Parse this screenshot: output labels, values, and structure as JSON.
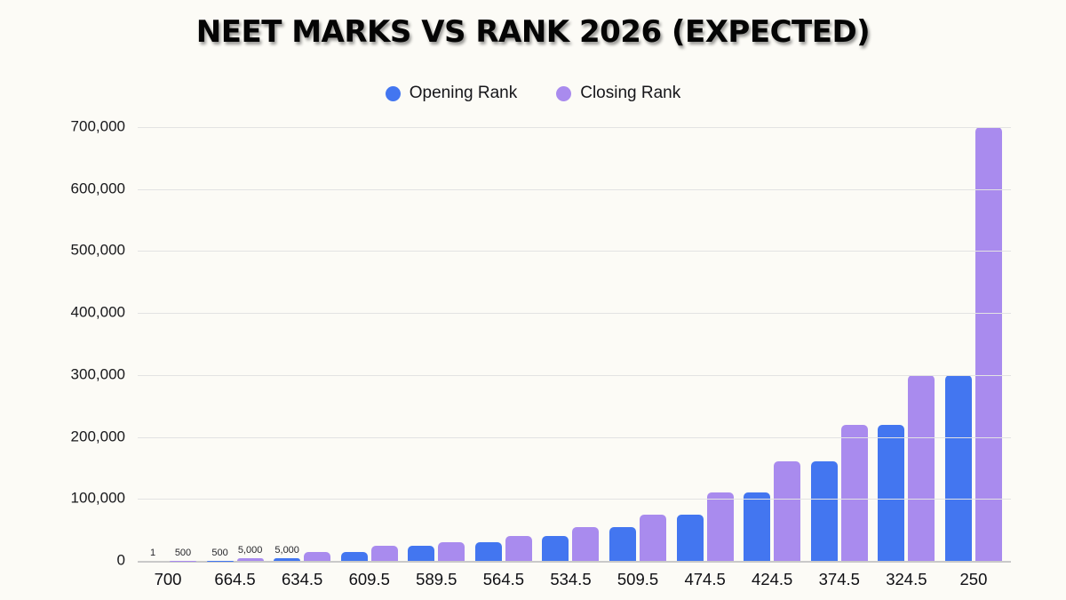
{
  "page": {
    "background": "#FCFBF6"
  },
  "chart_data": {
    "type": "bar",
    "title": "NEET MARKS VS RANK 2026 (EXPECTED)",
    "categories": [
      "700",
      "664.5",
      "634.5",
      "609.5",
      "589.5",
      "564.5",
      "534.5",
      "509.5",
      "474.5",
      "424.5",
      "374.5",
      "324.5",
      "250"
    ],
    "series": [
      {
        "name": "Opening Rank",
        "color": "#4376F0",
        "values": [
          1,
          500,
          5000,
          15000,
          25000,
          30000,
          40000,
          55000,
          75000,
          110000,
          160000,
          220000,
          300000
        ],
        "data_labels": [
          "1",
          "500",
          "5,000",
          null,
          null,
          null,
          null,
          null,
          null,
          null,
          null,
          null,
          null
        ]
      },
      {
        "name": "Closing Rank",
        "color": "#A98BEE",
        "values": [
          500,
          5000,
          15000,
          25000,
          30000,
          40000,
          55000,
          75000,
          110000,
          160000,
          220000,
          300000,
          700000
        ],
        "data_labels": [
          "500",
          "5,000",
          null,
          null,
          null,
          null,
          null,
          null,
          null,
          null,
          null,
          null,
          null
        ]
      }
    ],
    "xlabel": "",
    "ylabel": "",
    "ylim": [
      0,
      700000
    ],
    "yticks": [
      {
        "value": 700000,
        "label": "700,000"
      },
      {
        "value": 600000,
        "label": "600,000"
      },
      {
        "value": 500000,
        "label": "500,000"
      },
      {
        "value": 400000,
        "label": "400,000"
      },
      {
        "value": 300000,
        "label": "300,000"
      },
      {
        "value": 200000,
        "label": "200,000"
      },
      {
        "value": 100000,
        "label": "100,000"
      },
      {
        "value": 0,
        "label": "0"
      }
    ],
    "grid": "horizontal",
    "legend_position": "top-center",
    "colors": {
      "gridline": "#E3E3E3",
      "axis_line": "#C9C9C9",
      "text": "#111111"
    }
  }
}
